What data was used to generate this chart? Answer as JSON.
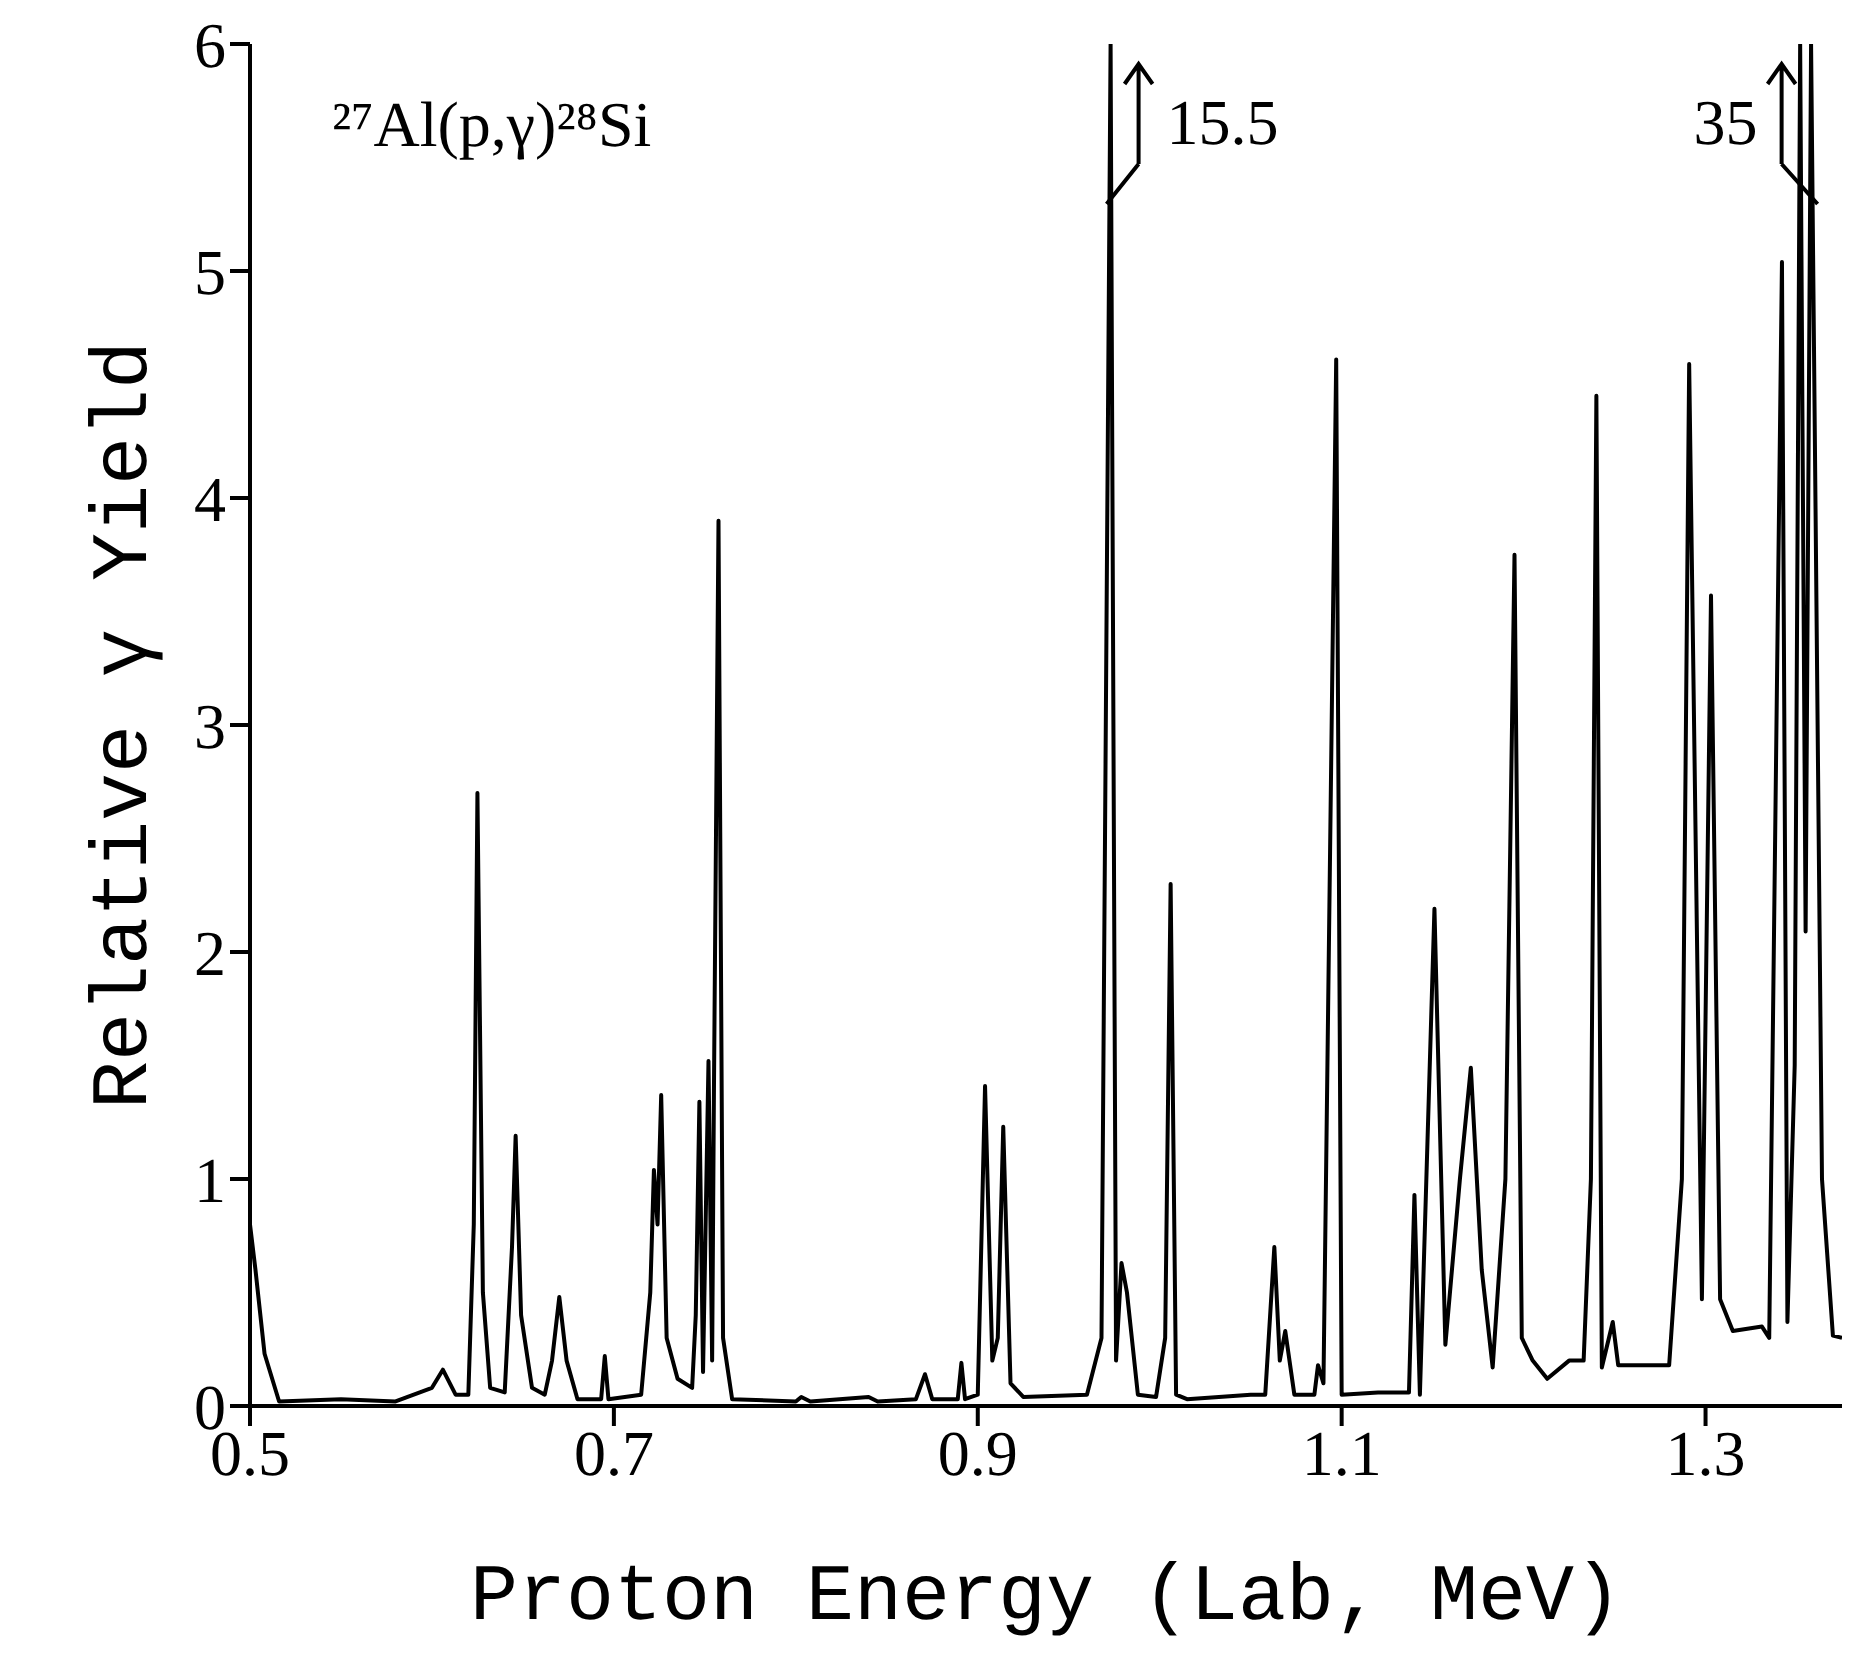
{
  "chart_data": {
    "type": "line",
    "color": "#000000",
    "x": [
      0.5,
      0.503,
      0.508,
      0.516,
      0.55,
      0.58,
      0.6,
      0.606,
      0.613,
      0.62,
      0.623,
      0.625,
      0.628,
      0.632,
      0.64,
      0.644,
      0.646,
      0.649,
      0.655,
      0.662,
      0.666,
      0.67,
      0.674,
      0.68,
      0.693,
      0.695,
      0.697,
      0.715,
      0.72,
      0.722,
      0.724,
      0.726,
      0.729,
      0.735,
      0.743,
      0.745,
      0.747,
      0.749,
      0.752,
      0.754,
      0.755,
      0.7575,
      0.76,
      0.765,
      0.8,
      0.803,
      0.808,
      0.84,
      0.845,
      0.866,
      0.871,
      0.875,
      0.889,
      0.891,
      0.893,
      0.9,
      0.904,
      0.908,
      0.911,
      0.914,
      0.918,
      0.925,
      0.96,
      0.968,
      0.973,
      0.976,
      0.979,
      0.982,
      0.988,
      0.998,
      1.003,
      1.006,
      1.009,
      1.015,
      1.05,
      1.058,
      1.063,
      1.066,
      1.069,
      1.074,
      1.085,
      1.087,
      1.09,
      1.097,
      1.1,
      1.12,
      1.137,
      1.14,
      1.143,
      1.151,
      1.157,
      1.165,
      1.171,
      1.177,
      1.183,
      1.19,
      1.195,
      1.199,
      1.205,
      1.213,
      1.225,
      1.233,
      1.237,
      1.24,
      1.243,
      1.249,
      1.252,
      1.28,
      1.287,
      1.291,
      1.298,
      1.303,
      1.308,
      1.315,
      1.331,
      1.335,
      1.342,
      1.345,
      1.349,
      1.352,
      1.355,
      1.358,
      1.364,
      1.37,
      1.375
    ],
    "values": [
      0.8,
      0.6,
      0.23,
      0.02,
      0.03,
      0.02,
      0.08,
      0.16,
      0.05,
      0.05,
      0.8,
      2.7,
      0.5,
      0.08,
      0.06,
      0.7,
      1.19,
      0.4,
      0.08,
      0.05,
      0.2,
      0.48,
      0.2,
      0.03,
      0.03,
      0.22,
      0.03,
      0.05,
      0.5,
      1.04,
      0.8,
      1.37,
      0.3,
      0.12,
      0.08,
      0.4,
      1.34,
      0.15,
      1.52,
      0.2,
      1.4,
      3.9,
      0.3,
      0.03,
      0.02,
      0.04,
      0.02,
      0.04,
      0.02,
      0.03,
      0.14,
      0.03,
      0.03,
      0.19,
      0.03,
      0.05,
      1.41,
      0.2,
      0.3,
      1.23,
      0.1,
      0.04,
      0.05,
      0.3,
      6,
      0.2,
      0.63,
      0.5,
      0.05,
      0.04,
      0.3,
      2.3,
      0.05,
      0.03,
      0.05,
      0.05,
      0.7,
      0.2,
      0.33,
      0.05,
      0.05,
      0.18,
      0.1,
      4.61,
      0.05,
      0.06,
      0.06,
      0.93,
      0.05,
      2.19,
      0.27,
      1.0,
      1.49,
      0.6,
      0.17,
      1.0,
      3.75,
      0.3,
      0.2,
      0.12,
      0.2,
      0.2,
      1.0,
      4.45,
      0.17,
      0.37,
      0.18,
      0.18,
      1.0,
      4.59,
      0.47,
      3.57,
      0.47,
      0.33,
      0.35,
      0.3,
      5.04,
      0.37,
      1.5,
      6,
      2.09,
      6,
      1.0,
      0.31,
      0.3
    ],
    "xlim": [
      0.5,
      1.375
    ],
    "xticks": [
      0.5,
      0.7,
      0.9,
      1.1,
      1.3
    ],
    "ylim": [
      0,
      6
    ],
    "yticks": [
      0,
      1,
      2,
      3,
      4,
      5,
      6
    ],
    "xlabel": "Proton Energy (Lab, MeV)",
    "ylabel": "Relative γ Yield",
    "annotations": [
      "²⁷Al(p,γ)²⁸Si",
      {
        "text": "15.5",
        "x": 0.973,
        "y": 6
      },
      {
        "text": "35",
        "x": 1.355,
        "y": 6
      }
    ]
  }
}
